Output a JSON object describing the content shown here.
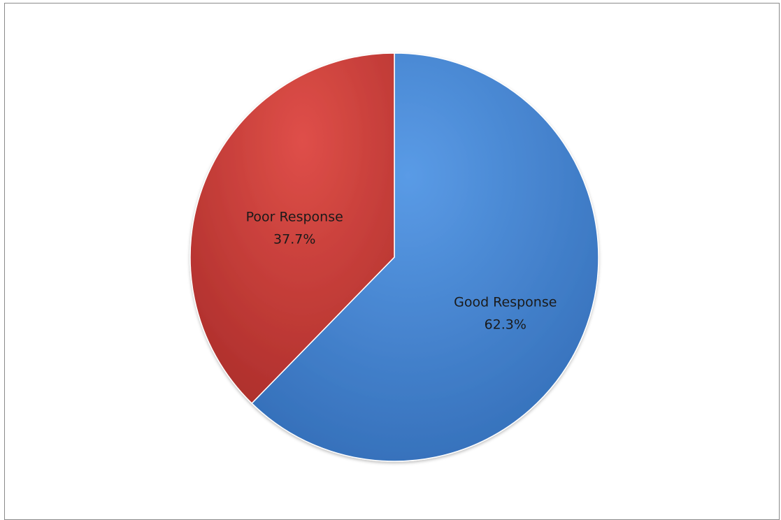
{
  "chart_data": {
    "type": "pie",
    "title": "",
    "legend": "none",
    "slices": [
      {
        "label": "Good Response",
        "value": 62.3,
        "value_label": "62.3%",
        "color": "#3f7fcc"
      },
      {
        "label": "Poor Response",
        "value": 37.7,
        "value_label": "37.7%",
        "color": "#c43a37"
      }
    ]
  }
}
